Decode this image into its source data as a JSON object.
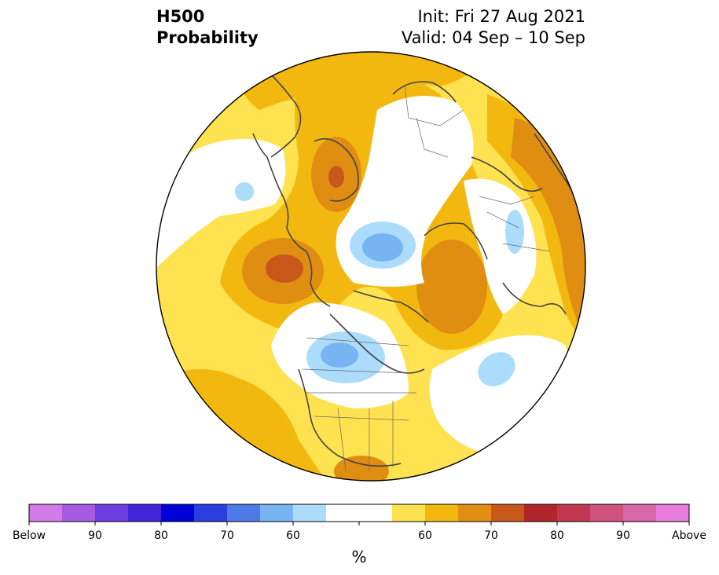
{
  "header": {
    "variable": "H500",
    "product": "Probability",
    "init": "Init: Fri 27 Aug 2021",
    "valid": "Valid: 04 Sep – 10 Sep"
  },
  "colorbar": {
    "unit": "%",
    "colors": [
      "#d37ae9",
      "#a35be2",
      "#6d3ce0",
      "#4424d8",
      "#0000d7",
      "#2a3fdf",
      "#4e7ae8",
      "#78b4f2",
      "#abdcfb",
      "#ffffff",
      "#ffffff",
      "#ffe24f",
      "#f3b80f",
      "#e08e12",
      "#c7581a",
      "#b02529",
      "#c1374f",
      "#d0527f",
      "#dc66aa",
      "#e87ddd"
    ],
    "labels": [
      "Below",
      "90",
      "80",
      "70",
      "60",
      "60",
      "70",
      "80",
      "90",
      "Above"
    ]
  },
  "palette": {
    "below_light": "#abdcfb",
    "below_mid": "#78b4f2",
    "above_light": "#ffe24f",
    "above_mid": "#f3b80f",
    "above_strong": "#e08e12",
    "above_stronger": "#c7581a"
  }
}
